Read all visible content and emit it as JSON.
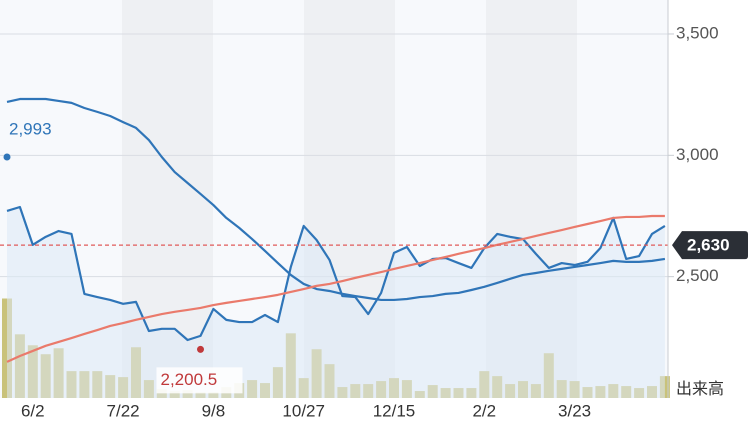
{
  "chart_data": {
    "type": "line",
    "categories": [
      null,
      null,
      "6/2",
      null,
      null,
      null,
      null,
      null,
      null,
      "7/22",
      null,
      null,
      null,
      null,
      null,
      null,
      "9/8",
      null,
      null,
      null,
      null,
      null,
      null,
      "10/27",
      null,
      null,
      null,
      null,
      null,
      null,
      "12/15",
      null,
      null,
      null,
      null,
      null,
      null,
      "2/2",
      null,
      null,
      null,
      null,
      null,
      null,
      "3/23",
      null,
      null,
      null,
      null,
      null,
      null,
      null
    ],
    "series": [
      {
        "name": "price",
        "type": "line",
        "color": "#2f75b8",
        "area": true,
        "values": [
          2771,
          2787,
          2631,
          2664,
          2688,
          2676,
          2429,
          2416,
          2404,
          2388,
          2396,
          2276,
          2285,
          2285,
          2239,
          2256,
          2367,
          2322,
          2313,
          2313,
          2342,
          2313,
          2540,
          2709,
          2651,
          2569,
          2420,
          2416,
          2346,
          2433,
          2598,
          2622,
          2544,
          2573,
          2577,
          2556,
          2536,
          2618,
          2676,
          2664,
          2655,
          2594,
          2536,
          2556,
          2548,
          2561,
          2618,
          2742,
          2573,
          2585,
          2676,
          2709
        ]
      },
      {
        "name": "ma-long",
        "type": "line",
        "color": "#2f75b8",
        "values": [
          3220,
          3232,
          3232,
          3232,
          3224,
          3216,
          3195,
          3179,
          3162,
          3137,
          3113,
          3063,
          2993,
          2931,
          2886,
          2841,
          2795,
          2742,
          2701,
          2655,
          2606,
          2556,
          2507,
          2470,
          2449,
          2441,
          2429,
          2420,
          2412,
          2404,
          2404,
          2408,
          2416,
          2420,
          2429,
          2433,
          2445,
          2458,
          2474,
          2491,
          2507,
          2515,
          2524,
          2532,
          2540,
          2548,
          2556,
          2565,
          2561,
          2561,
          2565,
          2573
        ]
      },
      {
        "name": "ma-red",
        "type": "line",
        "color": "#ea7a6b",
        "values": [
          2149,
          2173,
          2194,
          2215,
          2231,
          2247,
          2264,
          2280,
          2297,
          2309,
          2322,
          2334,
          2346,
          2355,
          2363,
          2371,
          2383,
          2392,
          2400,
          2408,
          2416,
          2425,
          2437,
          2449,
          2462,
          2470,
          2482,
          2495,
          2507,
          2519,
          2532,
          2544,
          2556,
          2569,
          2581,
          2594,
          2606,
          2618,
          2631,
          2643,
          2655,
          2668,
          2680,
          2692,
          2705,
          2717,
          2729,
          2742,
          2746,
          2746,
          2750,
          2750
        ]
      },
      {
        "name": "volume",
        "type": "bar",
        "axis": "y2",
        "color": "#c9c27a",
        "values": [
          100,
          64,
          53,
          44,
          50,
          27,
          27,
          27,
          23,
          21,
          51,
          18,
          9,
          7,
          8,
          6,
          6,
          11,
          15,
          18,
          15,
          31,
          65,
          20,
          49,
          34,
          11,
          14,
          14,
          17,
          20,
          18,
          7,
          13,
          10,
          10,
          10,
          27,
          22,
          14,
          17,
          14,
          45,
          18,
          17,
          11,
          12,
          14,
          12,
          10,
          12,
          22
        ]
      }
    ],
    "ylim": [
      2000,
      3640
    ],
    "yticks": [
      {
        "value": 2500,
        "label": "2,500"
      },
      {
        "value": 3000,
        "label": "3,000"
      },
      {
        "value": 3500,
        "label": "3,500"
      }
    ],
    "y2lim": [
      0,
      400
    ],
    "y2_label": "出来高",
    "grid": true,
    "annotations": [
      {
        "label": "2,993",
        "value": 2993,
        "at": 0,
        "color": "#2f75b8"
      },
      {
        "label": "2,200.5",
        "value": 2200.5,
        "at": 15,
        "color": "#c0393b"
      }
    ],
    "last": {
      "value": 2630,
      "label": "2,630",
      "color": "#e05a5a"
    }
  }
}
